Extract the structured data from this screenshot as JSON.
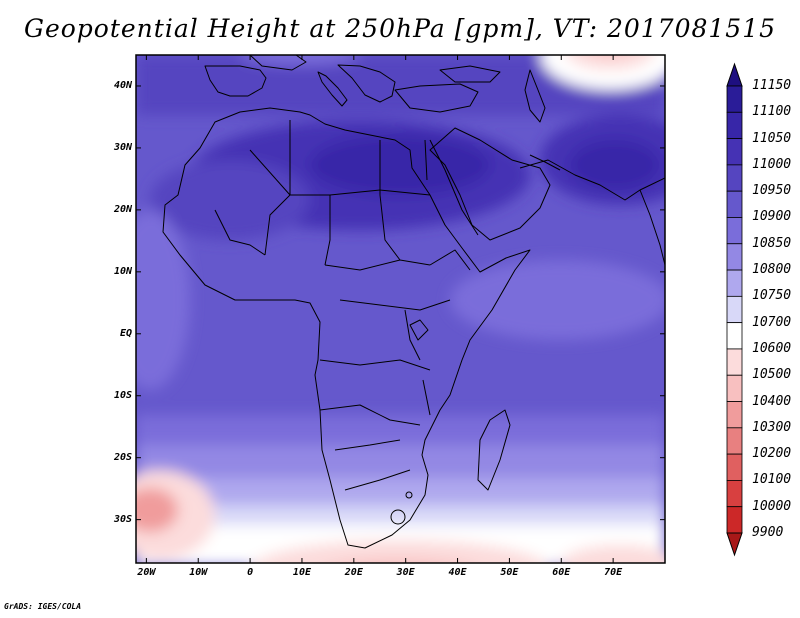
{
  "title": "Geopotential Height at 250hPa [gpm], VT: 2017081515",
  "credit": "GrADS: IGES/COLA",
  "lat_labels": [
    "40N",
    "30N",
    "20N",
    "10N",
    "EQ",
    "10S",
    "20S",
    "30S"
  ],
  "lat_values": [
    40,
    30,
    20,
    10,
    0,
    -10,
    -20,
    -30
  ],
  "lon_labels": [
    "20W",
    "10W",
    "0",
    "10E",
    "20E",
    "30E",
    "40E",
    "50E",
    "60E",
    "70E"
  ],
  "lon_values": [
    -20,
    -10,
    0,
    10,
    20,
    30,
    40,
    50,
    60,
    70
  ],
  "colorbar": {
    "labels": [
      "11150",
      "11100",
      "11050",
      "11000",
      "10950",
      "10900",
      "10850",
      "10800",
      "10750",
      "10700",
      "10600",
      "10500",
      "10400",
      "10300",
      "10200",
      "10100",
      "10000",
      "9900"
    ],
    "colors": [
      "#1e0f80",
      "#2a1c98",
      "#3726a8",
      "#4532b4",
      "#5545c0",
      "#6558cc",
      "#7a6dda",
      "#9388e4",
      "#afa8ee",
      "#d8d8f8",
      "#ffffff",
      "#fcdcdc",
      "#f8c0c0",
      "#f09c9c",
      "#e88080",
      "#e06060",
      "#d84040",
      "#cc2828",
      "#a81818"
    ]
  },
  "map_extent": {
    "lon_min": -22,
    "lon_max": 80,
    "lat_min": -37,
    "lat_max": 45
  }
}
